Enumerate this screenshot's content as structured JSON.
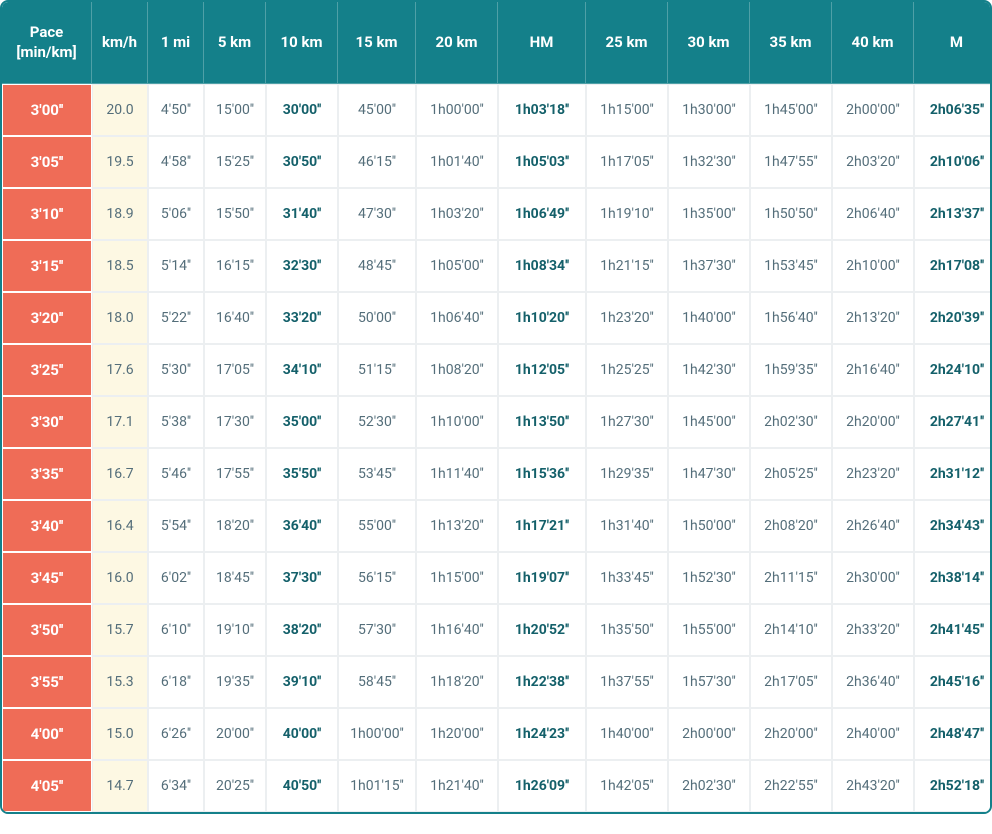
{
  "table": {
    "type": "table",
    "header_bg": "#14808a",
    "header_text_color": "#ffffff",
    "pace_bg": "#ef6c57",
    "pace_text_color": "#ffffff",
    "kmh_bg": "#fdf8e3",
    "cell_text_color": "#546e7a",
    "bold_text_color": "#14606a",
    "border_color": "#eceff1",
    "columns": [
      {
        "key": "pace",
        "label": "Pace [min/km]",
        "class": "c-pace"
      },
      {
        "key": "kmh",
        "label": "km/h",
        "class": "c-kmh"
      },
      {
        "key": "mi1",
        "label": "1 mi",
        "class": "c-1mi"
      },
      {
        "key": "km5",
        "label": "5 km",
        "class": "c-5km"
      },
      {
        "key": "km10",
        "label": "10 km",
        "class": "c-10km",
        "bold": true
      },
      {
        "key": "km15",
        "label": "15 km",
        "class": "c-15km"
      },
      {
        "key": "km20",
        "label": "20 km",
        "class": "c-20km"
      },
      {
        "key": "hm",
        "label": "HM",
        "class": "c-hm",
        "bold": true
      },
      {
        "key": "km25",
        "label": "25 km",
        "class": "c-25km"
      },
      {
        "key": "km30",
        "label": "30 km",
        "class": "c-30km"
      },
      {
        "key": "km35",
        "label": "35 km",
        "class": "c-35km"
      },
      {
        "key": "km40",
        "label": "40 km",
        "class": "c-40km"
      },
      {
        "key": "m",
        "label": "M",
        "class": "c-m",
        "bold": true
      }
    ],
    "rows": [
      {
        "pace": "3'00''",
        "kmh": "20.0",
        "mi1": "4'50''",
        "km5": "15'00''",
        "km10": "30'00''",
        "km15": "45'00''",
        "km20": "1h00'00''",
        "hm": "1h03'18''",
        "km25": "1h15'00''",
        "km30": "1h30'00''",
        "km35": "1h45'00''",
        "km40": "2h00'00''",
        "m": "2h06'35''"
      },
      {
        "pace": "3'05''",
        "kmh": "19.5",
        "mi1": "4'58''",
        "km5": "15'25''",
        "km10": "30'50''",
        "km15": "46'15''",
        "km20": "1h01'40''",
        "hm": "1h05'03''",
        "km25": "1h17'05''",
        "km30": "1h32'30''",
        "km35": "1h47'55''",
        "km40": "2h03'20''",
        "m": "2h10'06''"
      },
      {
        "pace": "3'10''",
        "kmh": "18.9",
        "mi1": "5'06''",
        "km5": "15'50''",
        "km10": "31'40''",
        "km15": "47'30''",
        "km20": "1h03'20''",
        "hm": "1h06'49''",
        "km25": "1h19'10''",
        "km30": "1h35'00''",
        "km35": "1h50'50''",
        "km40": "2h06'40''",
        "m": "2h13'37''"
      },
      {
        "pace": "3'15''",
        "kmh": "18.5",
        "mi1": "5'14''",
        "km5": "16'15''",
        "km10": "32'30''",
        "km15": "48'45''",
        "km20": "1h05'00''",
        "hm": "1h08'34''",
        "km25": "1h21'15''",
        "km30": "1h37'30''",
        "km35": "1h53'45''",
        "km40": "2h10'00''",
        "m": "2h17'08''"
      },
      {
        "pace": "3'20''",
        "kmh": "18.0",
        "mi1": "5'22''",
        "km5": "16'40''",
        "km10": "33'20''",
        "km15": "50'00''",
        "km20": "1h06'40''",
        "hm": "1h10'20''",
        "km25": "1h23'20''",
        "km30": "1h40'00''",
        "km35": "1h56'40''",
        "km40": "2h13'20''",
        "m": "2h20'39''"
      },
      {
        "pace": "3'25''",
        "kmh": "17.6",
        "mi1": "5'30''",
        "km5": "17'05''",
        "km10": "34'10''",
        "km15": "51'15''",
        "km20": "1h08'20''",
        "hm": "1h12'05''",
        "km25": "1h25'25''",
        "km30": "1h42'30''",
        "km35": "1h59'35''",
        "km40": "2h16'40''",
        "m": "2h24'10''"
      },
      {
        "pace": "3'30''",
        "kmh": "17.1",
        "mi1": "5'38''",
        "km5": "17'30''",
        "km10": "35'00''",
        "km15": "52'30''",
        "km20": "1h10'00''",
        "hm": "1h13'50''",
        "km25": "1h27'30''",
        "km30": "1h45'00''",
        "km35": "2h02'30''",
        "km40": "2h20'00''",
        "m": "2h27'41''"
      },
      {
        "pace": "3'35''",
        "kmh": "16.7",
        "mi1": "5'46''",
        "km5": "17'55''",
        "km10": "35'50''",
        "km15": "53'45''",
        "km20": "1h11'40''",
        "hm": "1h15'36''",
        "km25": "1h29'35''",
        "km30": "1h47'30''",
        "km35": "2h05'25''",
        "km40": "2h23'20''",
        "m": "2h31'12''"
      },
      {
        "pace": "3'40''",
        "kmh": "16.4",
        "mi1": "5'54''",
        "km5": "18'20''",
        "km10": "36'40''",
        "km15": "55'00''",
        "km20": "1h13'20''",
        "hm": "1h17'21''",
        "km25": "1h31'40''",
        "km30": "1h50'00''",
        "km35": "2h08'20''",
        "km40": "2h26'40''",
        "m": "2h34'43''"
      },
      {
        "pace": "3'45''",
        "kmh": "16.0",
        "mi1": "6'02''",
        "km5": "18'45''",
        "km10": "37'30''",
        "km15": "56'15''",
        "km20": "1h15'00''",
        "hm": "1h19'07''",
        "km25": "1h33'45''",
        "km30": "1h52'30''",
        "km35": "2h11'15''",
        "km40": "2h30'00''",
        "m": "2h38'14''"
      },
      {
        "pace": "3'50''",
        "kmh": "15.7",
        "mi1": "6'10''",
        "km5": "19'10''",
        "km10": "38'20''",
        "km15": "57'30''",
        "km20": "1h16'40''",
        "hm": "1h20'52''",
        "km25": "1h35'50''",
        "km30": "1h55'00''",
        "km35": "2h14'10''",
        "km40": "2h33'20''",
        "m": "2h41'45''"
      },
      {
        "pace": "3'55''",
        "kmh": "15.3",
        "mi1": "6'18''",
        "km5": "19'35''",
        "km10": "39'10''",
        "km15": "58'45''",
        "km20": "1h18'20''",
        "hm": "1h22'38''",
        "km25": "1h37'55''",
        "km30": "1h57'30''",
        "km35": "2h17'05''",
        "km40": "2h36'40''",
        "m": "2h45'16''"
      },
      {
        "pace": "4'00''",
        "kmh": "15.0",
        "mi1": "6'26''",
        "km5": "20'00''",
        "km10": "40'00''",
        "km15": "1h00'00''",
        "km20": "1h20'00''",
        "hm": "1h24'23''",
        "km25": "1h40'00''",
        "km30": "2h00'00''",
        "km35": "2h20'00''",
        "km40": "2h40'00''",
        "m": "2h48'47''"
      },
      {
        "pace": "4'05''",
        "kmh": "14.7",
        "mi1": "6'34''",
        "km5": "20'25''",
        "km10": "40'50''",
        "km15": "1h01'15''",
        "km20": "1h21'40''",
        "hm": "1h26'09''",
        "km25": "1h42'05''",
        "km30": "2h02'30''",
        "km35": "2h22'55''",
        "km40": "2h43'20''",
        "m": "2h52'18''"
      }
    ]
  }
}
